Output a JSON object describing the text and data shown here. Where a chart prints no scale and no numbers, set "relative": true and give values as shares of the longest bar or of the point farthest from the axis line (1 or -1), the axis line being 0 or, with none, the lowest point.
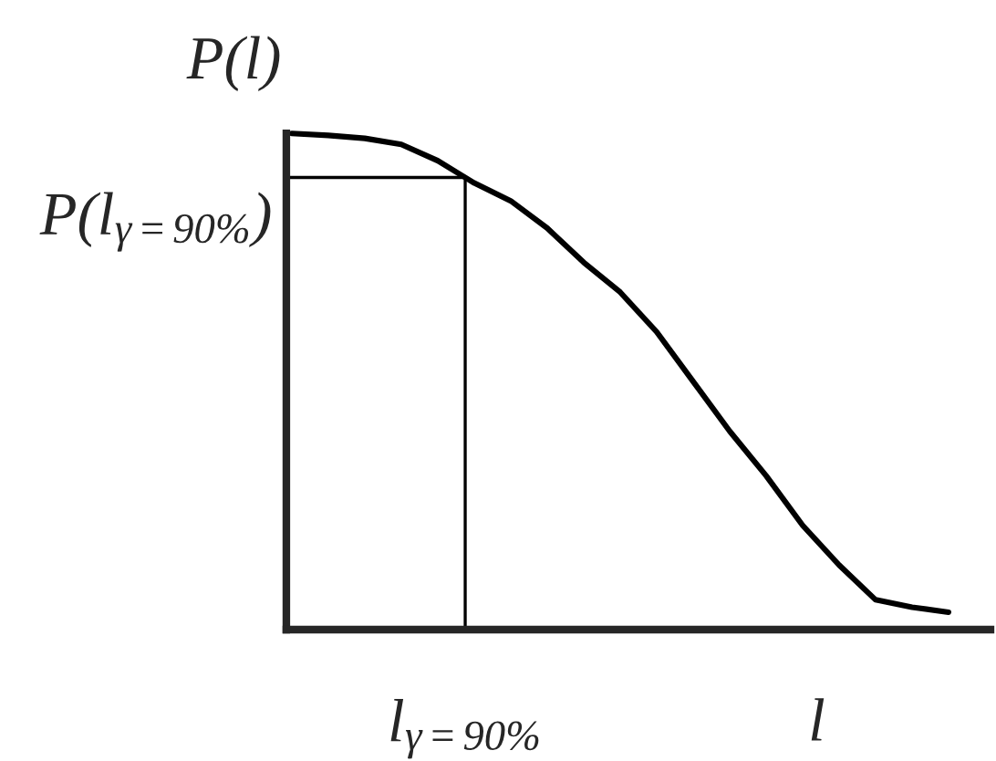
{
  "chart_data": {
    "type": "line",
    "relative": true,
    "xlabel": "l",
    "ylabel": "P(l)",
    "color": "#000000",
    "categories": [
      null,
      null,
      null,
      null,
      null,
      null,
      null,
      null,
      null,
      null,
      null,
      null,
      null,
      null,
      null,
      null,
      null,
      null,
      null
    ],
    "values": [
      1.0,
      0.996,
      0.99,
      0.978,
      0.945,
      0.9,
      0.864,
      0.809,
      0.74,
      0.68,
      0.6,
      0.5,
      0.4,
      0.31,
      0.21,
      0.13,
      0.06,
      0.045,
      0.035
    ],
    "annotations": [
      "l$_{γ=90%}$",
      "P(l$_{γ=90%}$)"
    ]
  }
}
